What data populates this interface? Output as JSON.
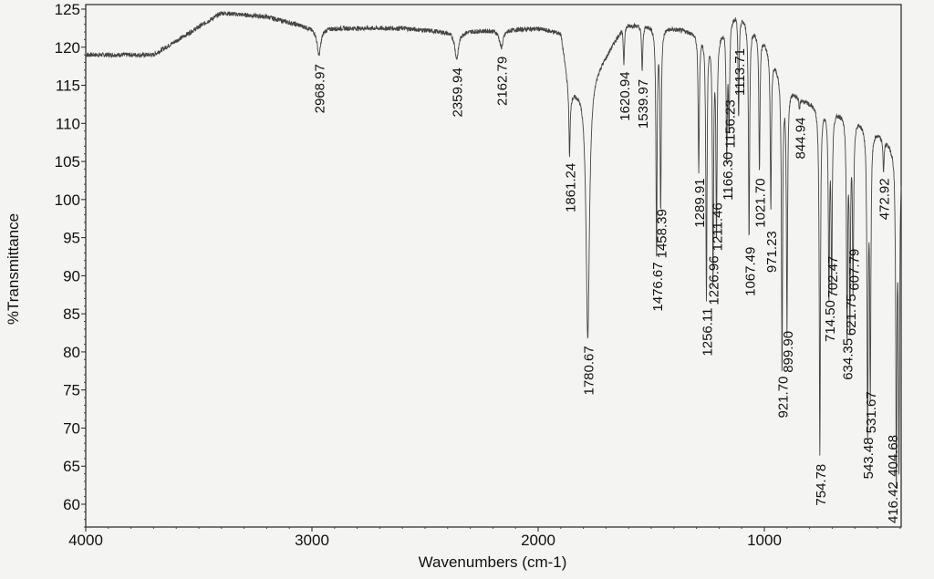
{
  "chart_data": {
    "type": "line",
    "title": "",
    "xlabel": "Wavenumbers (cm-1)",
    "ylabel": "%Transmittance",
    "xlim": [
      4000,
      395
    ],
    "ylim": [
      57,
      126
    ],
    "x_ticks": [
      4000,
      3000,
      2000,
      1000
    ],
    "y_ticks": [
      60,
      65,
      70,
      75,
      80,
      85,
      90,
      95,
      100,
      105,
      110,
      115,
      120,
      125
    ],
    "x_reversed": true,
    "grid": false,
    "line_color": "#444444",
    "baseline": [
      [
        4000,
        119
      ],
      [
        3700,
        119
      ],
      [
        3400,
        124.5
      ],
      [
        3200,
        124
      ],
      [
        3000,
        122.5
      ],
      [
        2600,
        122.5
      ],
      [
        2400,
        122
      ],
      [
        2000,
        122.5
      ],
      [
        1900,
        122
      ],
      [
        1860,
        114
      ],
      [
        1800,
        115
      ],
      [
        1700,
        119
      ],
      [
        1620,
        123
      ],
      [
        1500,
        123
      ],
      [
        1300,
        122
      ],
      [
        1200,
        122
      ],
      [
        1120,
        125
      ],
      [
        1000,
        121
      ],
      [
        900,
        115
      ],
      [
        820,
        113
      ],
      [
        700,
        112
      ],
      [
        600,
        111
      ],
      [
        500,
        109
      ],
      [
        395,
        106
      ]
    ],
    "peaks": [
      {
        "label": "2968.97",
        "x": 2968.97,
        "y": 119
      },
      {
        "label": "2359.94",
        "x": 2359.94,
        "y": 118.5
      },
      {
        "label": "2162.79",
        "x": 2162.79,
        "y": 120
      },
      {
        "label": "1861.24",
        "x": 1861.24,
        "y": 106
      },
      {
        "label": "1780.67",
        "x": 1780.67,
        "y": 82
      },
      {
        "label": "1620.94",
        "x": 1620.94,
        "y": 118
      },
      {
        "label": "1539.97",
        "x": 1539.97,
        "y": 117
      },
      {
        "label": "1476.67",
        "x": 1476.67,
        "y": 93
      },
      {
        "label": "1458.39",
        "x": 1458.39,
        "y": 99
      },
      {
        "label": "1289.91",
        "x": 1289.91,
        "y": 104
      },
      {
        "label": "1256.11",
        "x": 1256.11,
        "y": 87
      },
      {
        "label": "1226.96",
        "x": 1226.96,
        "y": 90
      },
      {
        "label": "1211.46",
        "x": 1211.46,
        "y": 96
      },
      {
        "label": "1166.30",
        "x": 1166.3,
        "y": 106
      },
      {
        "label": "1156.23",
        "x": 1156.23,
        "y": 110
      },
      {
        "label": "1113.71",
        "x": 1113.71,
        "y": 111
      },
      {
        "label": "1067.49",
        "x": 1067.49,
        "y": 95
      },
      {
        "label": "1021.70",
        "x": 1021.7,
        "y": 104
      },
      {
        "label": "971.23",
        "x": 971.23,
        "y": 99
      },
      {
        "label": "921.70",
        "x": 921.7,
        "y": 78
      },
      {
        "label": "899.90",
        "x": 899.9,
        "y": 83
      },
      {
        "label": "844.94",
        "x": 844.94,
        "y": 112
      },
      {
        "label": "754.78",
        "x": 754.78,
        "y": 66.5
      },
      {
        "label": "714.50",
        "x": 714.5,
        "y": 88
      },
      {
        "label": "702.47",
        "x": 702.47,
        "y": 89
      },
      {
        "label": "634.35",
        "x": 634.35,
        "y": 83
      },
      {
        "label": "621.75",
        "x": 621.75,
        "y": 85
      },
      {
        "label": "607.79",
        "x": 607.79,
        "y": 89
      },
      {
        "label": "543.48",
        "x": 543.48,
        "y": 70
      },
      {
        "label": "531.67",
        "x": 531.67,
        "y": 76
      },
      {
        "label": "472.92",
        "x": 472.92,
        "y": 104
      },
      {
        "label": "416.42",
        "x": 416.42,
        "y": 64
      },
      {
        "label": "404.68",
        "x": 404.68,
        "y": 66
      }
    ]
  }
}
